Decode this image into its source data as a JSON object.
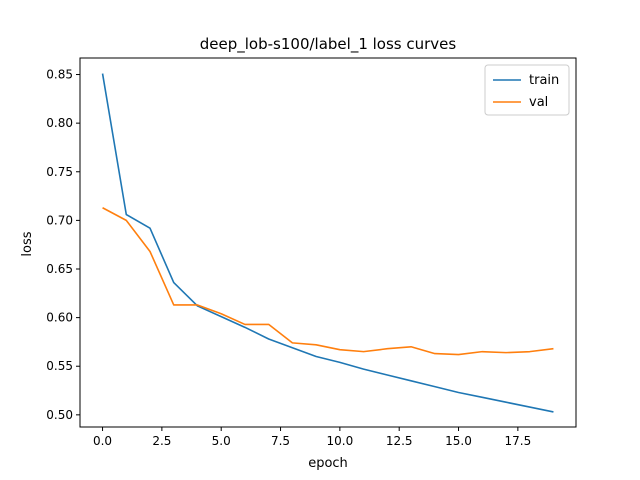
{
  "chart_data": {
    "type": "line",
    "title": "deep_lob-s100/label_1 loss curves",
    "xlabel": "epoch",
    "ylabel": "loss",
    "xlim": [
      -0.95,
      19.95
    ],
    "ylim": [
      0.4875,
      0.867
    ],
    "x_ticks": [
      0.0,
      2.5,
      5.0,
      7.5,
      10.0,
      12.5,
      15.0,
      17.5
    ],
    "x_tick_labels": [
      "0.0",
      "2.5",
      "5.0",
      "7.5",
      "10.0",
      "12.5",
      "15.0",
      "17.5"
    ],
    "y_ticks": [
      0.5,
      0.55,
      0.6,
      0.65,
      0.7,
      0.75,
      0.8,
      0.85
    ],
    "y_tick_labels": [
      "0.50",
      "0.55",
      "0.60",
      "0.65",
      "0.70",
      "0.75",
      "0.80",
      "0.85"
    ],
    "grid": false,
    "legend_position": "top-right",
    "x": [
      0,
      1,
      2,
      3,
      4,
      5,
      6,
      7,
      8,
      9,
      10,
      11,
      12,
      13,
      14,
      15,
      16,
      17,
      18,
      19
    ],
    "series": [
      {
        "name": "train",
        "color": "#1f77b4",
        "values": [
          0.851,
          0.706,
          0.692,
          0.636,
          0.612,
          0.601,
          0.59,
          0.578,
          0.569,
          0.56,
          0.554,
          0.547,
          0.541,
          0.535,
          0.529,
          0.523,
          0.518,
          0.513,
          0.508,
          0.503
        ]
      },
      {
        "name": "val",
        "color": "#ff7f0e",
        "values": [
          0.713,
          0.7,
          0.668,
          0.613,
          0.613,
          0.604,
          0.593,
          0.593,
          0.574,
          0.572,
          0.567,
          0.565,
          0.568,
          0.57,
          0.563,
          0.562,
          0.565,
          0.564,
          0.565,
          0.568
        ]
      }
    ]
  }
}
